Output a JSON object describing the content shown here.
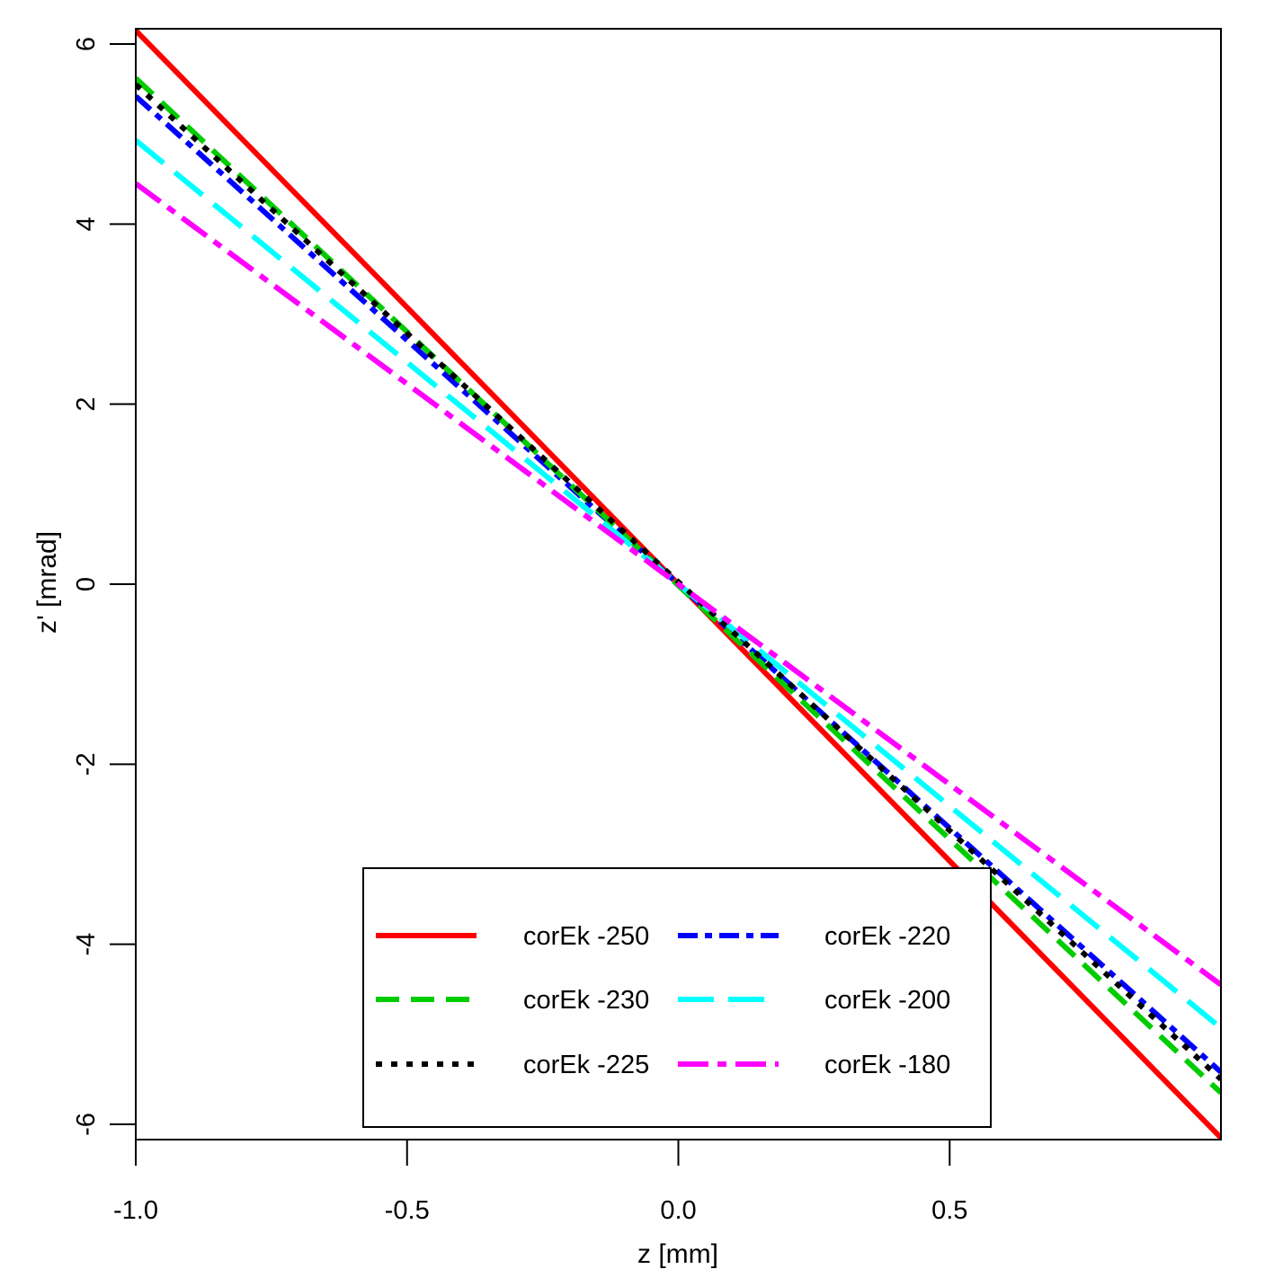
{
  "chart_data": {
    "type": "line",
    "title": "",
    "xlabel": "z [mm]",
    "ylabel": "z' [mrad]",
    "xlim": [
      -1.0,
      1.0
    ],
    "ylim": [
      -6.17,
      6.17
    ],
    "x_ticks": [
      -1.0,
      -0.5,
      0.0,
      0.5
    ],
    "x_tick_labels": [
      "-1.0",
      "-0.5",
      "0.0",
      "0.5"
    ],
    "y_ticks": [
      -6,
      -4,
      -2,
      0,
      2,
      4,
      6
    ],
    "y_tick_labels": [
      "-6",
      "-4",
      "-2",
      "0",
      "2",
      "4",
      "6"
    ],
    "grid": false,
    "legend_position": "bottom-center",
    "series": [
      {
        "name": "corEk -250",
        "color": "#ff0000",
        "style": "solid",
        "x": [
          -1.0,
          1.0
        ],
        "y": [
          6.15,
          -6.15
        ]
      },
      {
        "name": "corEk -220",
        "color": "#0000ff",
        "style": "dash-dot",
        "x": [
          -1.0,
          1.0
        ],
        "y": [
          5.42,
          -5.42
        ]
      },
      {
        "name": "corEk -230",
        "color": "#00cc00",
        "style": "dashed",
        "x": [
          -1.0,
          1.0
        ],
        "y": [
          5.62,
          -5.65
        ]
      },
      {
        "name": "corEk -200",
        "color": "#00ffff",
        "style": "long-dash",
        "x": [
          -1.0,
          1.0
        ],
        "y": [
          4.93,
          -4.93
        ]
      },
      {
        "name": "corEk -225",
        "color": "#000000",
        "style": "dotted",
        "x": [
          -1.0,
          1.0
        ],
        "y": [
          5.55,
          -5.5
        ]
      },
      {
        "name": "corEk -180",
        "color": "#ff00ff",
        "style": "dash-dot-long",
        "x": [
          -1.0,
          1.0
        ],
        "y": [
          4.45,
          -4.45
        ]
      }
    ]
  }
}
